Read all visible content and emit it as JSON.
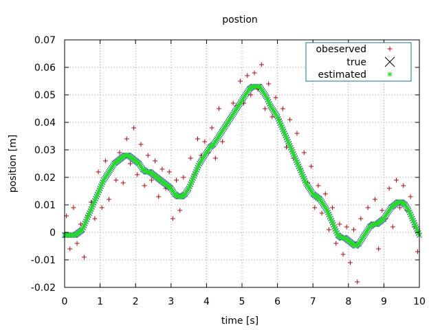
{
  "chart_data": {
    "type": "scatter",
    "title": "postion",
    "xlabel": "time [s]",
    "ylabel": "position [m]",
    "xlim": [
      0,
      10
    ],
    "ylim": [
      -0.02,
      0.07
    ],
    "xticks": [
      "0",
      "1",
      "2",
      "3",
      "4",
      "5",
      "6",
      "7",
      "8",
      "9",
      "10"
    ],
    "yticks": [
      "-0.02",
      "-0.01",
      "0",
      "0.01",
      "0.02",
      "0.03",
      "0.04",
      "0.05",
      "0.06",
      "0.07"
    ],
    "grid": true,
    "legend_position": "top-right",
    "series": [
      {
        "name": "obeserved",
        "marker": "plus",
        "color": "#cc0000",
        "x": [
          0.05,
          0.15,
          0.25,
          0.35,
          0.45,
          0.55,
          0.65,
          0.75,
          0.85,
          0.95,
          1.05,
          1.15,
          1.25,
          1.35,
          1.45,
          1.55,
          1.65,
          1.75,
          1.85,
          1.95,
          2.05,
          2.15,
          2.25,
          2.35,
          2.45,
          2.55,
          2.65,
          2.75,
          2.85,
          2.95,
          3.05,
          3.15,
          3.25,
          3.35,
          3.45,
          3.55,
          3.65,
          3.75,
          3.85,
          3.95,
          4.05,
          4.15,
          4.25,
          4.35,
          4.45,
          4.55,
          4.65,
          4.75,
          4.85,
          4.95,
          5.05,
          5.15,
          5.25,
          5.35,
          5.45,
          5.55,
          5.65,
          5.75,
          5.85,
          5.95,
          6.05,
          6.15,
          6.25,
          6.35,
          6.45,
          6.55,
          6.65,
          6.75,
          6.85,
          6.95,
          7.05,
          7.15,
          7.25,
          7.35,
          7.45,
          7.55,
          7.65,
          7.75,
          7.85,
          7.95,
          8.05,
          8.15,
          8.25,
          8.35,
          8.45,
          8.55,
          8.65,
          8.75,
          8.85,
          8.95,
          9.05,
          9.15,
          9.25,
          9.35,
          9.45,
          9.55,
          9.65,
          9.75,
          9.85,
          9.95
        ],
        "y": [
          0.006,
          -0.006,
          0.009,
          -0.004,
          0.003,
          -0.009,
          0.006,
          0.011,
          0.005,
          0.022,
          0.009,
          0.026,
          0.012,
          0.024,
          0.019,
          0.029,
          0.018,
          0.034,
          0.025,
          0.038,
          0.021,
          0.032,
          0.017,
          0.028,
          0.019,
          0.026,
          0.013,
          0.023,
          0.016,
          0.022,
          0.005,
          0.019,
          0.008,
          0.02,
          0.015,
          0.027,
          0.021,
          0.034,
          0.028,
          0.033,
          0.029,
          0.038,
          0.027,
          0.045,
          0.033,
          0.039,
          0.041,
          0.047,
          0.046,
          0.055,
          0.047,
          0.057,
          0.05,
          0.058,
          0.052,
          0.061,
          0.045,
          0.054,
          0.042,
          0.049,
          0.041,
          0.045,
          0.031,
          0.041,
          0.027,
          0.036,
          0.023,
          0.029,
          0.018,
          0.024,
          0.009,
          0.017,
          0.007,
          0.014,
          0.001,
          0.009,
          -0.004,
          0.003,
          -0.008,
          0.002,
          -0.011,
          0.001,
          -0.018,
          0.005,
          -0.001,
          0.009,
          0.003,
          0.012,
          -0.006,
          0.008,
          0.005,
          0.016,
          0.002,
          0.019,
          0.009,
          0.017,
          0.008,
          0.013,
          0.002,
          -0.007
        ]
      },
      {
        "name": "true",
        "marker": "cross",
        "color": "#0000cc",
        "x": [
          0.0,
          0.1,
          0.2,
          0.3,
          0.4,
          0.5,
          0.6,
          0.7,
          0.8,
          0.9,
          1.0,
          1.1,
          1.2,
          1.3,
          1.4,
          1.5,
          1.6,
          1.7,
          1.8,
          1.9,
          2.0,
          2.1,
          2.2,
          2.3,
          2.4,
          2.5,
          2.6,
          2.7,
          2.8,
          2.9,
          3.0,
          3.1,
          3.2,
          3.3,
          3.4,
          3.5,
          3.6,
          3.7,
          3.8,
          3.9,
          4.0,
          4.1,
          4.2,
          4.3,
          4.4,
          4.5,
          4.6,
          4.7,
          4.8,
          4.9,
          5.0,
          5.1,
          5.2,
          5.3,
          5.4,
          5.5,
          5.6,
          5.7,
          5.8,
          5.9,
          6.0,
          6.1,
          6.2,
          6.3,
          6.4,
          6.5,
          6.6,
          6.7,
          6.8,
          6.9,
          7.0,
          7.1,
          7.2,
          7.3,
          7.4,
          7.5,
          7.6,
          7.7,
          7.8,
          7.9,
          8.0,
          8.1,
          8.2,
          8.3,
          8.4,
          8.5,
          8.6,
          8.7,
          8.8,
          8.9,
          9.0,
          9.1,
          9.2,
          9.3,
          9.4,
          9.5,
          9.6,
          9.7,
          9.8,
          9.9,
          10.0
        ],
        "y": [
          -0.001,
          -0.001,
          -0.001,
          -0.001,
          0.0,
          0.001,
          0.004,
          0.007,
          0.01,
          0.013,
          0.016,
          0.019,
          0.021,
          0.023,
          0.025,
          0.026,
          0.027,
          0.028,
          0.028,
          0.027,
          0.026,
          0.025,
          0.023,
          0.022,
          0.022,
          0.021,
          0.02,
          0.019,
          0.018,
          0.017,
          0.016,
          0.014,
          0.013,
          0.013,
          0.014,
          0.016,
          0.019,
          0.022,
          0.025,
          0.027,
          0.029,
          0.031,
          0.032,
          0.034,
          0.036,
          0.038,
          0.04,
          0.042,
          0.044,
          0.046,
          0.048,
          0.05,
          0.052,
          0.053,
          0.053,
          0.053,
          0.051,
          0.049,
          0.046,
          0.044,
          0.042,
          0.039,
          0.036,
          0.033,
          0.03,
          0.027,
          0.024,
          0.021,
          0.018,
          0.016,
          0.014,
          0.013,
          0.012,
          0.01,
          0.008,
          0.005,
          0.002,
          -0.001,
          -0.002,
          -0.002,
          -0.003,
          -0.004,
          -0.005,
          -0.004,
          -0.002,
          0.0,
          0.002,
          0.003,
          0.003,
          0.004,
          0.005,
          0.007,
          0.009,
          0.01,
          0.011,
          0.011,
          0.01,
          0.008,
          0.005,
          0.002,
          -0.001
        ]
      },
      {
        "name": "estimated",
        "marker": "star",
        "color": "#22dd22",
        "x": [
          0.0,
          0.1,
          0.2,
          0.3,
          0.4,
          0.5,
          0.6,
          0.7,
          0.8,
          0.9,
          1.0,
          1.1,
          1.2,
          1.3,
          1.4,
          1.5,
          1.6,
          1.7,
          1.8,
          1.9,
          2.0,
          2.1,
          2.2,
          2.3,
          2.4,
          2.5,
          2.6,
          2.7,
          2.8,
          2.9,
          3.0,
          3.1,
          3.2,
          3.3,
          3.4,
          3.5,
          3.6,
          3.7,
          3.8,
          3.9,
          4.0,
          4.1,
          4.2,
          4.3,
          4.4,
          4.5,
          4.6,
          4.7,
          4.8,
          4.9,
          5.0,
          5.1,
          5.2,
          5.3,
          5.4,
          5.5,
          5.6,
          5.7,
          5.8,
          5.9,
          6.0,
          6.1,
          6.2,
          6.3,
          6.4,
          6.5,
          6.6,
          6.7,
          6.8,
          6.9,
          7.0,
          7.1,
          7.2,
          7.3,
          7.4,
          7.5,
          7.6,
          7.7,
          7.8,
          7.9,
          8.0,
          8.1,
          8.2,
          8.3,
          8.4,
          8.5,
          8.6,
          8.7,
          8.8,
          8.9,
          9.0,
          9.1,
          9.2,
          9.3,
          9.4,
          9.5,
          9.6,
          9.7,
          9.8,
          9.9,
          10.0
        ],
        "y": [
          -0.001,
          -0.001,
          -0.001,
          -0.001,
          0.0,
          0.001,
          0.004,
          0.007,
          0.01,
          0.013,
          0.016,
          0.019,
          0.021,
          0.023,
          0.025,
          0.026,
          0.027,
          0.028,
          0.028,
          0.027,
          0.026,
          0.025,
          0.023,
          0.022,
          0.022,
          0.021,
          0.02,
          0.019,
          0.018,
          0.017,
          0.016,
          0.014,
          0.013,
          0.013,
          0.014,
          0.016,
          0.019,
          0.022,
          0.025,
          0.027,
          0.029,
          0.031,
          0.032,
          0.034,
          0.036,
          0.038,
          0.04,
          0.042,
          0.044,
          0.046,
          0.048,
          0.05,
          0.052,
          0.053,
          0.053,
          0.053,
          0.051,
          0.049,
          0.046,
          0.044,
          0.042,
          0.039,
          0.036,
          0.033,
          0.03,
          0.027,
          0.024,
          0.021,
          0.018,
          0.016,
          0.014,
          0.013,
          0.012,
          0.01,
          0.008,
          0.005,
          0.002,
          -0.001,
          -0.002,
          -0.002,
          -0.003,
          -0.004,
          -0.005,
          -0.004,
          -0.002,
          0.0,
          0.002,
          0.003,
          0.003,
          0.004,
          0.005,
          0.007,
          0.009,
          0.01,
          0.011,
          0.011,
          0.01,
          0.008,
          0.005,
          0.002,
          -0.001
        ]
      }
    ]
  }
}
